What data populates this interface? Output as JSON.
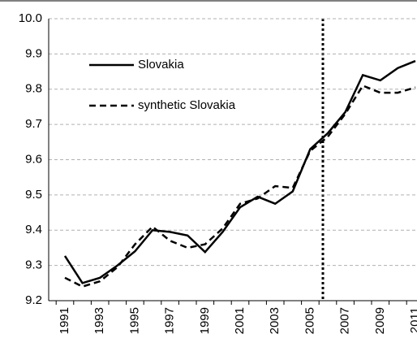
{
  "chart_data": {
    "type": "line",
    "categories": [
      "1991",
      null,
      "1993",
      null,
      "1995",
      null,
      "1997",
      null,
      "1999",
      null,
      "2001",
      null,
      "2003",
      null,
      "2005",
      null,
      "2007",
      null,
      "2009",
      null,
      "2011"
    ],
    "series": [
      {
        "name": "Slovakia",
        "color": "#000000",
        "dash": "solid",
        "values": [
          9.327,
          9.25,
          9.265,
          9.3,
          9.34,
          9.4,
          9.395,
          9.385,
          9.338,
          9.395,
          9.465,
          9.495,
          9.475,
          9.51,
          9.63,
          9.675,
          9.735,
          9.84,
          9.825,
          9.86,
          9.88
        ]
      },
      {
        "name": "synthetic Slovakia",
        "color": "#000000",
        "dash": "dashed",
        "values": [
          9.265,
          9.24,
          9.255,
          9.295,
          9.36,
          9.41,
          9.37,
          9.35,
          9.36,
          9.405,
          9.475,
          9.49,
          9.525,
          9.52,
          9.625,
          9.665,
          9.73,
          9.81,
          9.79,
          9.79,
          9.805
        ]
      }
    ],
    "ylim": [
      9.2,
      10.0
    ],
    "yticks": [
      9.2,
      9.3,
      9.4,
      9.5,
      9.6,
      9.7,
      9.8,
      9.9,
      {
        "value": 10.0,
        "label": "10.0"
      }
    ],
    "grid": true,
    "legend": "upper-left"
  }
}
